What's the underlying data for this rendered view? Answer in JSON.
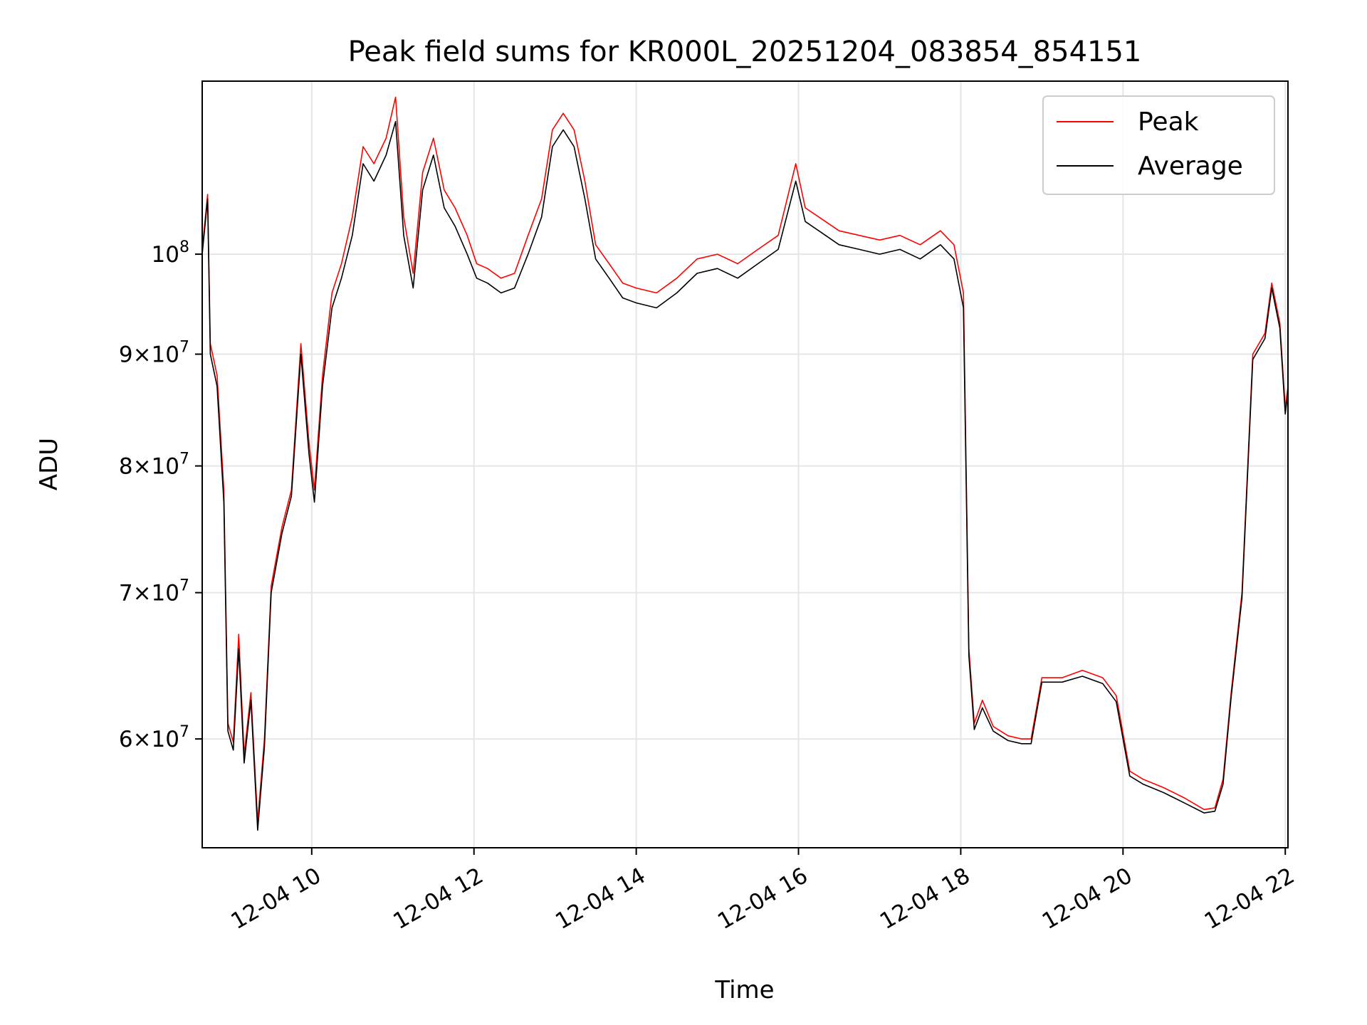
{
  "chart_data": {
    "type": "line",
    "title": "Peak field sums for KR000L_20251204_083854_854151",
    "xlabel": "Time",
    "ylabel": "ADU",
    "yscale": "log",
    "ylim": [
      53500000,
      120000000
    ],
    "xlim": [
      "2025-12-04 08:39",
      "2025-12-04 22:02"
    ],
    "grid": true,
    "legend": {
      "placement": "upper-right",
      "entries": [
        "Peak",
        "Average"
      ]
    },
    "x_ticks": [
      {
        "t": "2025-12-04 10:00",
        "label": "12-04 10"
      },
      {
        "t": "2025-12-04 12:00",
        "label": "12-04 12"
      },
      {
        "t": "2025-12-04 14:00",
        "label": "12-04 14"
      },
      {
        "t": "2025-12-04 16:00",
        "label": "12-04 16"
      },
      {
        "t": "2025-12-04 18:00",
        "label": "12-04 18"
      },
      {
        "t": "2025-12-04 20:00",
        "label": "12-04 20"
      },
      {
        "t": "2025-12-04 22:00",
        "label": "12-04 22"
      }
    ],
    "y_ticks": [
      {
        "v": 60000000,
        "mant": "6",
        "exp": "7"
      },
      {
        "v": 70000000,
        "mant": "7",
        "exp": "7"
      },
      {
        "v": 80000000,
        "mant": "8",
        "exp": "7"
      },
      {
        "v": 90000000,
        "mant": "9",
        "exp": "7"
      },
      {
        "v": 100000000,
        "mant": "",
        "exp": "8"
      }
    ],
    "series": [
      {
        "name": "Peak",
        "color": "#ff0000",
        "points": [
          [
            "2025-12-04 08:39",
            100500000
          ],
          [
            "2025-12-04 08:43",
            106500000
          ],
          [
            "2025-12-04 08:45",
            91000000
          ],
          [
            "2025-12-04 08:50",
            88000000
          ],
          [
            "2025-12-04 08:55",
            78000000
          ],
          [
            "2025-12-04 08:58",
            61000000
          ],
          [
            "2025-12-04 09:02",
            59800000
          ],
          [
            "2025-12-04 09:06",
            67000000
          ],
          [
            "2025-12-04 09:10",
            59000000
          ],
          [
            "2025-12-04 09:15",
            63000000
          ],
          [
            "2025-12-04 09:20",
            55000000
          ],
          [
            "2025-12-04 09:25",
            60000000
          ],
          [
            "2025-12-04 09:30",
            70500000
          ],
          [
            "2025-12-04 09:38",
            75000000
          ],
          [
            "2025-12-04 09:45",
            78000000
          ],
          [
            "2025-12-04 09:52",
            91000000
          ],
          [
            "2025-12-04 09:58",
            82000000
          ],
          [
            "2025-12-04 10:02",
            78000000
          ],
          [
            "2025-12-04 10:08",
            88000000
          ],
          [
            "2025-12-04 10:15",
            96000000
          ],
          [
            "2025-12-04 10:22",
            99000000
          ],
          [
            "2025-12-04 10:30",
            104000000
          ],
          [
            "2025-12-04 10:38",
            112000000
          ],
          [
            "2025-12-04 10:46",
            110000000
          ],
          [
            "2025-12-04 10:55",
            113000000
          ],
          [
            "2025-12-04 11:02",
            118000000
          ],
          [
            "2025-12-04 11:08",
            104000000
          ],
          [
            "2025-12-04 11:15",
            98000000
          ],
          [
            "2025-12-04 11:22",
            109000000
          ],
          [
            "2025-12-04 11:30",
            113000000
          ],
          [
            "2025-12-04 11:38",
            107000000
          ],
          [
            "2025-12-04 11:46",
            105000000
          ],
          [
            "2025-12-04 11:55",
            102000000
          ],
          [
            "2025-12-04 12:02",
            99000000
          ],
          [
            "2025-12-04 12:10",
            98500000
          ],
          [
            "2025-12-04 12:20",
            97500000
          ],
          [
            "2025-12-04 12:30",
            98000000
          ],
          [
            "2025-12-04 12:40",
            102000000
          ],
          [
            "2025-12-04 12:50",
            106000000
          ],
          [
            "2025-12-04 12:58",
            114000000
          ],
          [
            "2025-12-04 13:06",
            116000000
          ],
          [
            "2025-12-04 13:14",
            114000000
          ],
          [
            "2025-12-04 13:22",
            108000000
          ],
          [
            "2025-12-04 13:30",
            101000000
          ],
          [
            "2025-12-04 13:40",
            99000000
          ],
          [
            "2025-12-04 13:50",
            97000000
          ],
          [
            "2025-12-04 14:00",
            96500000
          ],
          [
            "2025-12-04 14:15",
            96000000
          ],
          [
            "2025-12-04 14:30",
            97500000
          ],
          [
            "2025-12-04 14:45",
            99500000
          ],
          [
            "2025-12-04 15:00",
            100000000
          ],
          [
            "2025-12-04 15:15",
            99000000
          ],
          [
            "2025-12-04 15:30",
            100500000
          ],
          [
            "2025-12-04 15:45",
            102000000
          ],
          [
            "2025-12-04 15:58",
            110000000
          ],
          [
            "2025-12-04 16:05",
            105000000
          ],
          [
            "2025-12-04 16:15",
            104000000
          ],
          [
            "2025-12-04 16:30",
            102500000
          ],
          [
            "2025-12-04 16:45",
            102000000
          ],
          [
            "2025-12-04 17:00",
            101500000
          ],
          [
            "2025-12-04 17:15",
            102000000
          ],
          [
            "2025-12-04 17:30",
            101000000
          ],
          [
            "2025-12-04 17:45",
            102500000
          ],
          [
            "2025-12-04 17:55",
            101000000
          ],
          [
            "2025-12-04 18:02",
            96000000
          ],
          [
            "2025-12-04 18:06",
            66000000
          ],
          [
            "2025-12-04 18:10",
            61000000
          ],
          [
            "2025-12-04 18:16",
            62500000
          ],
          [
            "2025-12-04 18:24",
            60800000
          ],
          [
            "2025-12-04 18:35",
            60200000
          ],
          [
            "2025-12-04 18:45",
            60000000
          ],
          [
            "2025-12-04 18:52",
            60000000
          ],
          [
            "2025-12-04 19:00",
            64000000
          ],
          [
            "2025-12-04 19:15",
            64000000
          ],
          [
            "2025-12-04 19:30",
            64500000
          ],
          [
            "2025-12-04 19:45",
            64000000
          ],
          [
            "2025-12-04 19:55",
            62800000
          ],
          [
            "2025-12-04 20:05",
            58000000
          ],
          [
            "2025-12-04 20:15",
            57500000
          ],
          [
            "2025-12-04 20:30",
            57000000
          ],
          [
            "2025-12-04 20:45",
            56400000
          ],
          [
            "2025-12-04 21:00",
            55700000
          ],
          [
            "2025-12-04 21:08",
            55800000
          ],
          [
            "2025-12-04 21:14",
            57500000
          ],
          [
            "2025-12-04 21:20",
            63000000
          ],
          [
            "2025-12-04 21:28",
            70000000
          ],
          [
            "2025-12-04 21:36",
            90000000
          ],
          [
            "2025-12-04 21:45",
            92000000
          ],
          [
            "2025-12-04 21:50",
            97000000
          ],
          [
            "2025-12-04 21:56",
            93000000
          ],
          [
            "2025-12-04 22:00",
            85000000
          ],
          [
            "2025-12-04 22:02",
            87000000
          ]
        ]
      },
      {
        "name": "Average",
        "color": "#000000",
        "points": [
          [
            "2025-12-04 08:39",
            100000000
          ],
          [
            "2025-12-04 08:43",
            106000000
          ],
          [
            "2025-12-04 08:45",
            90000000
          ],
          [
            "2025-12-04 08:50",
            87000000
          ],
          [
            "2025-12-04 08:55",
            77000000
          ],
          [
            "2025-12-04 08:58",
            60500000
          ],
          [
            "2025-12-04 09:02",
            59300000
          ],
          [
            "2025-12-04 09:06",
            66000000
          ],
          [
            "2025-12-04 09:10",
            58500000
          ],
          [
            "2025-12-04 09:15",
            62500000
          ],
          [
            "2025-12-04 09:20",
            54500000
          ],
          [
            "2025-12-04 09:25",
            59500000
          ],
          [
            "2025-12-04 09:30",
            70000000
          ],
          [
            "2025-12-04 09:38",
            74500000
          ],
          [
            "2025-12-04 09:45",
            77500000
          ],
          [
            "2025-12-04 09:52",
            90000000
          ],
          [
            "2025-12-04 09:58",
            81000000
          ],
          [
            "2025-12-04 10:02",
            77000000
          ],
          [
            "2025-12-04 10:08",
            87000000
          ],
          [
            "2025-12-04 10:15",
            94500000
          ],
          [
            "2025-12-04 10:22",
            97500000
          ],
          [
            "2025-12-04 10:30",
            102000000
          ],
          [
            "2025-12-04 10:38",
            110000000
          ],
          [
            "2025-12-04 10:46",
            108000000
          ],
          [
            "2025-12-04 10:55",
            111000000
          ],
          [
            "2025-12-04 11:02",
            115000000
          ],
          [
            "2025-12-04 11:08",
            102000000
          ],
          [
            "2025-12-04 11:15",
            96500000
          ],
          [
            "2025-12-04 11:22",
            107000000
          ],
          [
            "2025-12-04 11:30",
            111000000
          ],
          [
            "2025-12-04 11:38",
            105000000
          ],
          [
            "2025-12-04 11:46",
            103000000
          ],
          [
            "2025-12-04 11:55",
            100000000
          ],
          [
            "2025-12-04 12:02",
            97500000
          ],
          [
            "2025-12-04 12:10",
            97000000
          ],
          [
            "2025-12-04 12:20",
            96000000
          ],
          [
            "2025-12-04 12:30",
            96500000
          ],
          [
            "2025-12-04 12:40",
            100000000
          ],
          [
            "2025-12-04 12:50",
            104000000
          ],
          [
            "2025-12-04 12:58",
            112000000
          ],
          [
            "2025-12-04 13:06",
            114000000
          ],
          [
            "2025-12-04 13:14",
            112000000
          ],
          [
            "2025-12-04 13:22",
            106000000
          ],
          [
            "2025-12-04 13:30",
            99500000
          ],
          [
            "2025-12-04 13:40",
            97500000
          ],
          [
            "2025-12-04 13:50",
            95500000
          ],
          [
            "2025-12-04 14:00",
            95000000
          ],
          [
            "2025-12-04 14:15",
            94500000
          ],
          [
            "2025-12-04 14:30",
            96000000
          ],
          [
            "2025-12-04 14:45",
            98000000
          ],
          [
            "2025-12-04 15:00",
            98500000
          ],
          [
            "2025-12-04 15:15",
            97500000
          ],
          [
            "2025-12-04 15:30",
            99000000
          ],
          [
            "2025-12-04 15:45",
            100500000
          ],
          [
            "2025-12-04 15:58",
            108000000
          ],
          [
            "2025-12-04 16:05",
            103500000
          ],
          [
            "2025-12-04 16:15",
            102500000
          ],
          [
            "2025-12-04 16:30",
            101000000
          ],
          [
            "2025-12-04 16:45",
            100500000
          ],
          [
            "2025-12-04 17:00",
            100000000
          ],
          [
            "2025-12-04 17:15",
            100500000
          ],
          [
            "2025-12-04 17:30",
            99500000
          ],
          [
            "2025-12-04 17:45",
            101000000
          ],
          [
            "2025-12-04 17:55",
            99500000
          ],
          [
            "2025-12-04 18:02",
            94500000
          ],
          [
            "2025-12-04 18:06",
            65500000
          ],
          [
            "2025-12-04 18:10",
            60600000
          ],
          [
            "2025-12-04 18:16",
            62000000
          ],
          [
            "2025-12-04 18:24",
            60500000
          ],
          [
            "2025-12-04 18:35",
            59900000
          ],
          [
            "2025-12-04 18:45",
            59700000
          ],
          [
            "2025-12-04 18:52",
            59700000
          ],
          [
            "2025-12-04 19:00",
            63700000
          ],
          [
            "2025-12-04 19:15",
            63700000
          ],
          [
            "2025-12-04 19:30",
            64100000
          ],
          [
            "2025-12-04 19:45",
            63600000
          ],
          [
            "2025-12-04 19:55",
            62400000
          ],
          [
            "2025-12-04 20:05",
            57700000
          ],
          [
            "2025-12-04 20:15",
            57200000
          ],
          [
            "2025-12-04 20:30",
            56700000
          ],
          [
            "2025-12-04 20:45",
            56100000
          ],
          [
            "2025-12-04 21:00",
            55500000
          ],
          [
            "2025-12-04 21:08",
            55600000
          ],
          [
            "2025-12-04 21:14",
            57200000
          ],
          [
            "2025-12-04 21:20",
            62700000
          ],
          [
            "2025-12-04 21:28",
            69600000
          ],
          [
            "2025-12-04 21:36",
            89500000
          ],
          [
            "2025-12-04 21:45",
            91500000
          ],
          [
            "2025-12-04 21:50",
            96500000
          ],
          [
            "2025-12-04 21:56",
            92500000
          ],
          [
            "2025-12-04 22:00",
            84500000
          ],
          [
            "2025-12-04 22:02",
            86500000
          ]
        ]
      }
    ]
  }
}
